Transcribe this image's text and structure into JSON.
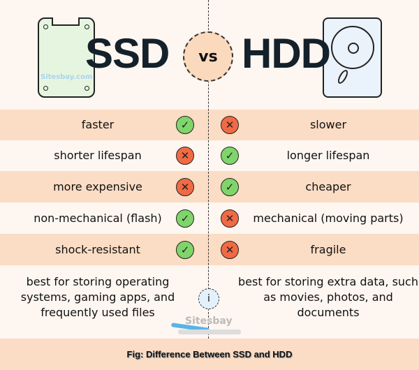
{
  "header": {
    "left_title": "SSD",
    "vs_label": "vs",
    "right_title": "HDD",
    "watermark": "Sitesbay.com"
  },
  "rows": [
    {
      "ssd": "faster",
      "ssd_mark": "check",
      "hdd_mark": "cross",
      "hdd": "slower"
    },
    {
      "ssd": "shorter lifespan",
      "ssd_mark": "cross",
      "hdd_mark": "check",
      "hdd": "longer lifespan"
    },
    {
      "ssd": "more expensive",
      "ssd_mark": "cross",
      "hdd_mark": "check",
      "hdd": "cheaper"
    },
    {
      "ssd": "non-mechanical (flash)",
      "ssd_mark": "check",
      "hdd_mark": "cross",
      "hdd": "mechanical (moving parts)"
    },
    {
      "ssd": "shock-resistant",
      "ssd_mark": "check",
      "hdd_mark": "cross",
      "hdd": "fragile"
    }
  ],
  "best_for": {
    "ssd": "best for storing operating systems, gaming apps, and frequently used files",
    "hdd": "best for storing extra data, such as movies, photos, and documents",
    "info_icon": "i"
  },
  "logo_text": "Sitesbay",
  "caption": "Fig: Difference Between SSD and HDD",
  "colors": {
    "peach": "#fbdcc4",
    "background": "#fdf6f1",
    "check": "#7fd56a",
    "cross": "#f06a45",
    "title": "#14212b"
  }
}
